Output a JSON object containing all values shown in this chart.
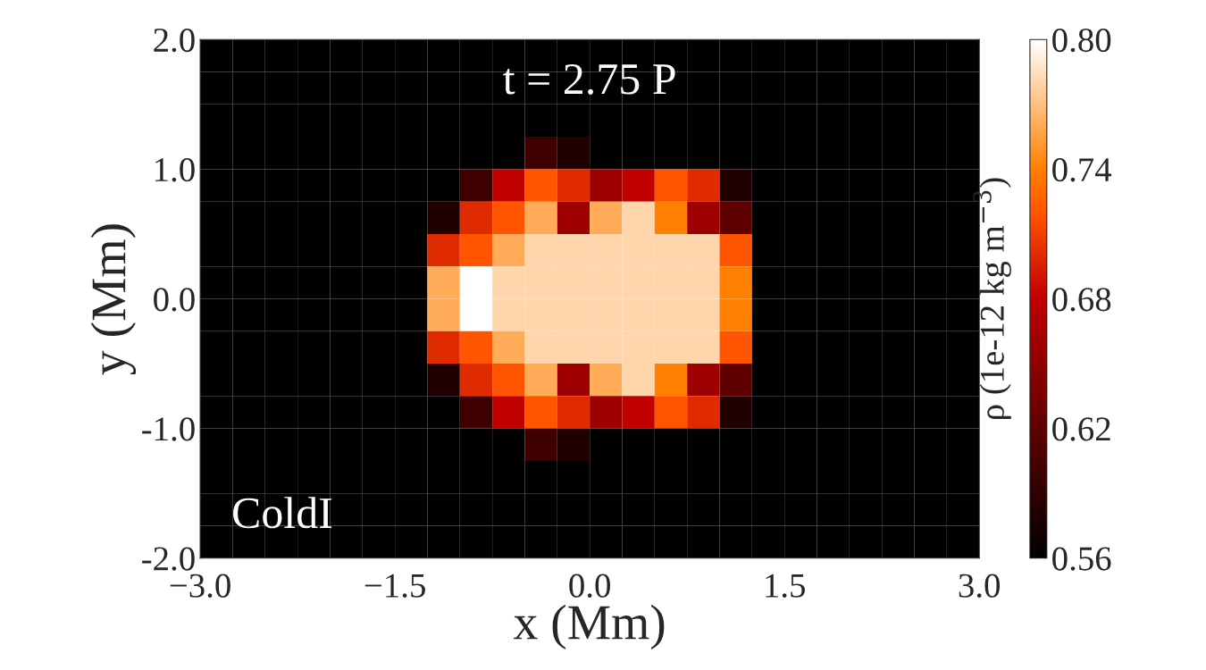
{
  "chart_data": {
    "type": "heatmap",
    "title": "t = 2.75 P",
    "xlabel": "x (Mm)",
    "ylabel": "y (Mm)",
    "clabel": "ρ (1e-12 kg m$^{−3}$)",
    "annotations": [
      "ColdI"
    ],
    "xlim": [
      -3.0,
      3.0
    ],
    "ylim": [
      -2.0,
      2.0
    ],
    "xticks": [
      {
        "value": -3.0,
        "label": "−3.0"
      },
      {
        "value": -1.5,
        "label": "−1.5"
      },
      {
        "value": 0.0,
        "label": "0.0"
      },
      {
        "value": 1.5,
        "label": "1.5"
      },
      {
        "value": 3.0,
        "label": "3.0"
      }
    ],
    "yticks": [
      {
        "value": -2.0,
        "label": "-2.0"
      },
      {
        "value": -1.0,
        "label": "-1.0"
      },
      {
        "value": 0.0,
        "label": "0.0"
      },
      {
        "value": 1.0,
        "label": "1.0"
      },
      {
        "value": 2.0,
        "label": "2.0"
      }
    ],
    "clim": [
      0.56,
      0.8
    ],
    "cticks": [
      0.56,
      0.62,
      0.68,
      0.74,
      {
        "value": 0.8,
        "label": "0.80"
      }
    ],
    "cells": [
      [
        0.56,
        0.56,
        0.56,
        0.56,
        0.56,
        0.56,
        0.56,
        0.56,
        0.56,
        0.56,
        0.56,
        0.56,
        0.56,
        0.56,
        0.56,
        0.56,
        0.56,
        0.56,
        0.56,
        0.56,
        0.56,
        0.56,
        0.56,
        0.56
      ],
      [
        0.56,
        0.56,
        0.56,
        0.56,
        0.56,
        0.56,
        0.56,
        0.56,
        0.56,
        0.56,
        0.56,
        0.56,
        0.56,
        0.56,
        0.56,
        0.56,
        0.56,
        0.56,
        0.56,
        0.56,
        0.56,
        0.56,
        0.56,
        0.56
      ],
      [
        0.56,
        0.56,
        0.56,
        0.56,
        0.56,
        0.56,
        0.56,
        0.56,
        0.56,
        0.56,
        0.56,
        0.56,
        0.56,
        0.56,
        0.56,
        0.56,
        0.56,
        0.56,
        0.56,
        0.56,
        0.56,
        0.56,
        0.56,
        0.56
      ],
      [
        0.56,
        0.56,
        0.56,
        0.56,
        0.56,
        0.56,
        0.56,
        0.56,
        0.56,
        0.56,
        0.6,
        0.58,
        0.56,
        0.56,
        0.56,
        0.56,
        0.56,
        0.56,
        0.56,
        0.56,
        0.56,
        0.56,
        0.56,
        0.56
      ],
      [
        0.56,
        0.56,
        0.56,
        0.56,
        0.56,
        0.56,
        0.56,
        0.56,
        0.6,
        0.68,
        0.72,
        0.7,
        0.66,
        0.68,
        0.72,
        0.7,
        0.58,
        0.56,
        0.56,
        0.56,
        0.56,
        0.56,
        0.56,
        0.56
      ],
      [
        0.56,
        0.56,
        0.56,
        0.56,
        0.56,
        0.56,
        0.56,
        0.58,
        0.7,
        0.72,
        0.76,
        0.66,
        0.76,
        0.78,
        0.74,
        0.66,
        0.62,
        0.56,
        0.56,
        0.56,
        0.56,
        0.56,
        0.56,
        0.56
      ],
      [
        0.56,
        0.56,
        0.56,
        0.56,
        0.56,
        0.56,
        0.56,
        0.7,
        0.72,
        0.76,
        0.78,
        0.78,
        0.78,
        0.78,
        0.78,
        0.78,
        0.72,
        0.56,
        0.56,
        0.56,
        0.56,
        0.56,
        0.56,
        0.56
      ],
      [
        0.56,
        0.56,
        0.56,
        0.56,
        0.56,
        0.56,
        0.56,
        0.76,
        0.8,
        0.78,
        0.78,
        0.78,
        0.78,
        0.78,
        0.78,
        0.78,
        0.74,
        0.56,
        0.56,
        0.56,
        0.56,
        0.56,
        0.56,
        0.56
      ],
      [
        0.56,
        0.56,
        0.56,
        0.56,
        0.56,
        0.56,
        0.56,
        0.76,
        0.8,
        0.78,
        0.78,
        0.78,
        0.78,
        0.78,
        0.78,
        0.78,
        0.74,
        0.56,
        0.56,
        0.56,
        0.56,
        0.56,
        0.56,
        0.56
      ],
      [
        0.56,
        0.56,
        0.56,
        0.56,
        0.56,
        0.56,
        0.56,
        0.7,
        0.72,
        0.76,
        0.78,
        0.78,
        0.78,
        0.78,
        0.78,
        0.78,
        0.72,
        0.56,
        0.56,
        0.56,
        0.56,
        0.56,
        0.56,
        0.56
      ],
      [
        0.56,
        0.56,
        0.56,
        0.56,
        0.56,
        0.56,
        0.56,
        0.58,
        0.7,
        0.72,
        0.76,
        0.66,
        0.76,
        0.78,
        0.74,
        0.66,
        0.62,
        0.56,
        0.56,
        0.56,
        0.56,
        0.56,
        0.56,
        0.56
      ],
      [
        0.56,
        0.56,
        0.56,
        0.56,
        0.56,
        0.56,
        0.56,
        0.56,
        0.6,
        0.68,
        0.72,
        0.7,
        0.66,
        0.68,
        0.72,
        0.7,
        0.58,
        0.56,
        0.56,
        0.56,
        0.56,
        0.56,
        0.56,
        0.56
      ],
      [
        0.56,
        0.56,
        0.56,
        0.56,
        0.56,
        0.56,
        0.56,
        0.56,
        0.56,
        0.56,
        0.6,
        0.58,
        0.56,
        0.56,
        0.56,
        0.56,
        0.56,
        0.56,
        0.56,
        0.56,
        0.56,
        0.56,
        0.56,
        0.56
      ],
      [
        0.56,
        0.56,
        0.56,
        0.56,
        0.56,
        0.56,
        0.56,
        0.56,
        0.56,
        0.56,
        0.56,
        0.56,
        0.56,
        0.56,
        0.56,
        0.56,
        0.56,
        0.56,
        0.56,
        0.56,
        0.56,
        0.56,
        0.56,
        0.56
      ],
      [
        0.56,
        0.56,
        0.56,
        0.56,
        0.56,
        0.56,
        0.56,
        0.56,
        0.56,
        0.56,
        0.56,
        0.56,
        0.56,
        0.56,
        0.56,
        0.56,
        0.56,
        0.56,
        0.56,
        0.56,
        0.56,
        0.56,
        0.56,
        0.56
      ],
      [
        0.56,
        0.56,
        0.56,
        0.56,
        0.56,
        0.56,
        0.56,
        0.56,
        0.56,
        0.56,
        0.56,
        0.56,
        0.56,
        0.56,
        0.56,
        0.56,
        0.56,
        0.56,
        0.56,
        0.56,
        0.56,
        0.56,
        0.56,
        0.56
      ]
    ]
  }
}
